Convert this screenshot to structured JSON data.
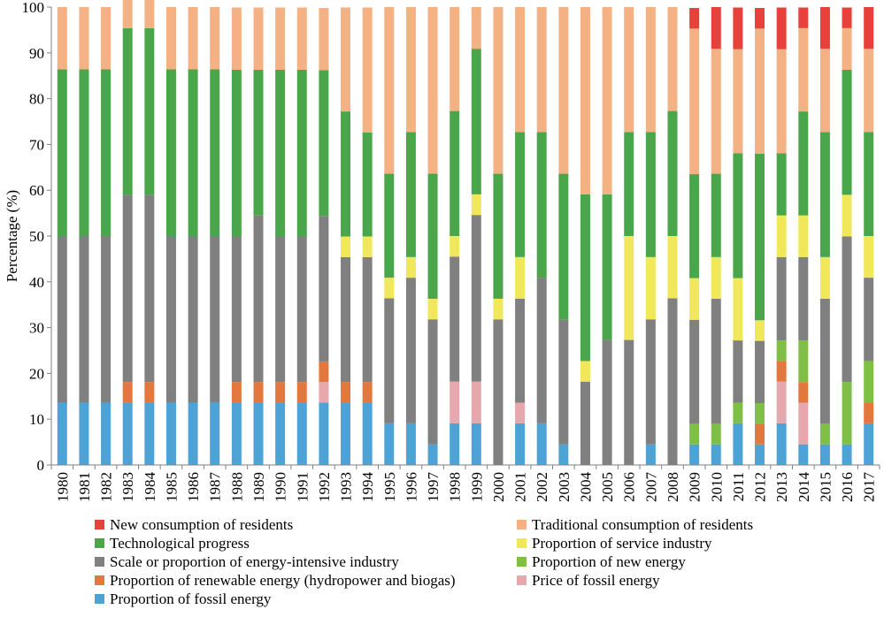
{
  "chart_data": {
    "type": "bar",
    "stacked": true,
    "ylabel": "Percentage (%)",
    "xlabel": "",
    "ylim": [
      0,
      100
    ],
    "yticks": [
      0,
      10,
      20,
      30,
      40,
      50,
      60,
      70,
      80,
      90,
      100
    ],
    "grid": false,
    "legend_position": "bottom",
    "categories": [
      "1980",
      "1981",
      "1982",
      "1983",
      "1984",
      "1985",
      "1986",
      "1987",
      "1988",
      "1989",
      "1990",
      "1991",
      "1992",
      "1993",
      "1994",
      "1995",
      "1996",
      "1997",
      "1998",
      "1999",
      "2000",
      "2001",
      "2002",
      "2003",
      "2004",
      "2005",
      "2006",
      "2007",
      "2008",
      "2009",
      "2010",
      "2011",
      "2012",
      "2013",
      "2014",
      "2015",
      "2016",
      "2017"
    ],
    "series": [
      {
        "name": "Proportion of fossil energy",
        "color": "#4ea3d6",
        "values": [
          13.6,
          13.6,
          13.6,
          13.6,
          13.6,
          13.6,
          13.6,
          13.6,
          13.6,
          13.6,
          13.6,
          13.6,
          13.6,
          13.6,
          13.6,
          9.1,
          9.1,
          4.5,
          9.1,
          9.1,
          0,
          9.1,
          9.1,
          4.5,
          0,
          0,
          0,
          4.5,
          0,
          4.5,
          4.5,
          9.1,
          4.5,
          9.1,
          4.5,
          4.5,
          4.5,
          9.1
        ]
      },
      {
        "name": "Price of fossil energy",
        "color": "#e7a8ad",
        "values": [
          0,
          0,
          0,
          0,
          0,
          0,
          0,
          0,
          0,
          0,
          0,
          0,
          4.5,
          0,
          0,
          0,
          0,
          0,
          9.1,
          9.1,
          0,
          4.5,
          0,
          0,
          0,
          0,
          0,
          0,
          0,
          0,
          0,
          0,
          0,
          9.1,
          9.1,
          0,
          0,
          0
        ]
      },
      {
        "name": "Proportion of renewable energy (hydropower and biogas)",
        "color": "#e3783f",
        "values": [
          0,
          0,
          0,
          4.5,
          4.5,
          0,
          0,
          0,
          4.5,
          4.5,
          4.5,
          4.5,
          4.5,
          4.5,
          4.5,
          0,
          0,
          0,
          0,
          0,
          0,
          0,
          0,
          0,
          0,
          0,
          0,
          0,
          0,
          0,
          0,
          0,
          4.5,
          4.5,
          4.5,
          0,
          0,
          4.5
        ]
      },
      {
        "name": "Proportion of new energy",
        "color": "#7fbf45",
        "values": [
          0,
          0,
          0,
          0,
          0,
          0,
          0,
          0,
          0,
          0,
          0,
          0,
          0,
          0,
          0,
          0,
          0,
          0,
          0,
          0,
          0,
          0,
          0,
          0,
          0,
          0,
          0,
          0,
          0,
          4.5,
          4.5,
          4.5,
          4.5,
          4.5,
          9.1,
          4.5,
          13.6,
          9.1
        ]
      },
      {
        "name": "Scale or proportion of energy-intensive industry",
        "color": "#808080",
        "values": [
          36.4,
          36.4,
          36.4,
          40.9,
          40.9,
          36.4,
          36.4,
          36.4,
          31.8,
          36.4,
          31.8,
          31.8,
          31.8,
          27.3,
          27.3,
          27.3,
          31.8,
          27.3,
          27.3,
          36.4,
          31.8,
          22.7,
          31.8,
          27.3,
          18.2,
          27.3,
          27.3,
          27.3,
          36.4,
          22.7,
          27.3,
          13.6,
          13.6,
          18.2,
          18.2,
          27.3,
          31.8,
          18.2
        ]
      },
      {
        "name": "Proportion of service industry",
        "color": "#f0e85a",
        "values": [
          0,
          0,
          0,
          0,
          0,
          0,
          0,
          0,
          0,
          0,
          0,
          0,
          0,
          4.5,
          4.5,
          4.5,
          4.5,
          4.5,
          4.5,
          4.5,
          4.5,
          9.1,
          0,
          0,
          4.5,
          0,
          22.7,
          13.6,
          13.6,
          9.1,
          9.1,
          13.6,
          4.5,
          9.1,
          9.1,
          9.1,
          9.1,
          9.1
        ]
      },
      {
        "name": "Technological progress",
        "color": "#4aa64a",
        "values": [
          36.4,
          36.4,
          36.4,
          36.4,
          36.4,
          36.4,
          36.4,
          36.4,
          36.4,
          31.8,
          36.4,
          36.4,
          31.8,
          27.3,
          22.7,
          22.7,
          27.3,
          27.3,
          27.3,
          31.8,
          27.3,
          27.3,
          31.8,
          31.8,
          36.4,
          31.8,
          22.7,
          27.3,
          27.3,
          22.7,
          18.2,
          27.3,
          36.4,
          13.6,
          22.7,
          27.3,
          27.3,
          22.7
        ]
      },
      {
        "name": "Traditional consumption of residents",
        "color": "#f4b183",
        "values": [
          13.6,
          13.6,
          13.6,
          9.1,
          9.1,
          13.6,
          13.6,
          13.6,
          13.6,
          13.6,
          13.6,
          13.6,
          13.6,
          22.7,
          27.3,
          36.4,
          27.3,
          36.4,
          22.7,
          9.1,
          36.4,
          27.3,
          27.3,
          36.4,
          40.9,
          40.9,
          27.3,
          27.3,
          22.7,
          31.8,
          27.3,
          22.7,
          27.3,
          22.7,
          18.2,
          18.2,
          9.1,
          18.2
        ]
      },
      {
        "name": "New consumption of residents",
        "color": "#e8403a",
        "values": [
          0,
          0,
          0,
          0,
          0,
          0,
          0,
          0,
          0,
          0,
          0,
          0,
          0,
          0,
          0,
          0,
          0,
          0,
          0,
          0,
          0,
          0,
          0,
          0,
          0,
          0,
          0,
          0,
          0,
          4.5,
          9.1,
          9.1,
          4.5,
          9.1,
          4.5,
          9.1,
          4.5,
          9.1
        ]
      }
    ],
    "legend_order": [
      "New consumption of residents",
      "Traditional consumption of residents",
      "Technological progress",
      "Proportion of service industry",
      "Scale or proportion of energy-intensive industry",
      "Proportion of new energy",
      "Proportion of renewable energy (hydropower and biogas)",
      "Price of fossil energy",
      "Proportion of fossil energy"
    ]
  }
}
